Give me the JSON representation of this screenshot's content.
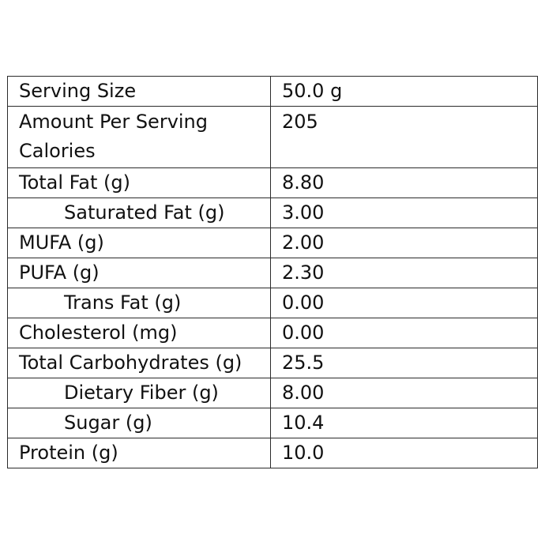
{
  "rows": [
    {
      "label": "Serving Size",
      "value": "50.0 g"
    },
    {
      "label_line1": "Amount Per Serving",
      "label_line2": "Calories",
      "value": "205"
    },
    {
      "label": "Total Fat (g)",
      "value": "8.80"
    },
    {
      "label": "Saturated Fat (g)",
      "value": "3.00"
    },
    {
      "label": "MUFA (g)",
      "value": "2.00"
    },
    {
      "label": "PUFA (g)",
      "value": "2.30"
    },
    {
      "label": "Trans Fat (g)",
      "value": "0.00"
    },
    {
      "label": "Cholesterol (mg)",
      "value": "0.00"
    },
    {
      "label": "Total Carbohydrates (g)",
      "value": "25.5"
    },
    {
      "label": "Dietary Fiber (g)",
      "value": "8.00"
    },
    {
      "label": "Sugar (g)",
      "value": "10.4"
    },
    {
      "label": "Protein (g)",
      "value": "10.0"
    }
  ]
}
